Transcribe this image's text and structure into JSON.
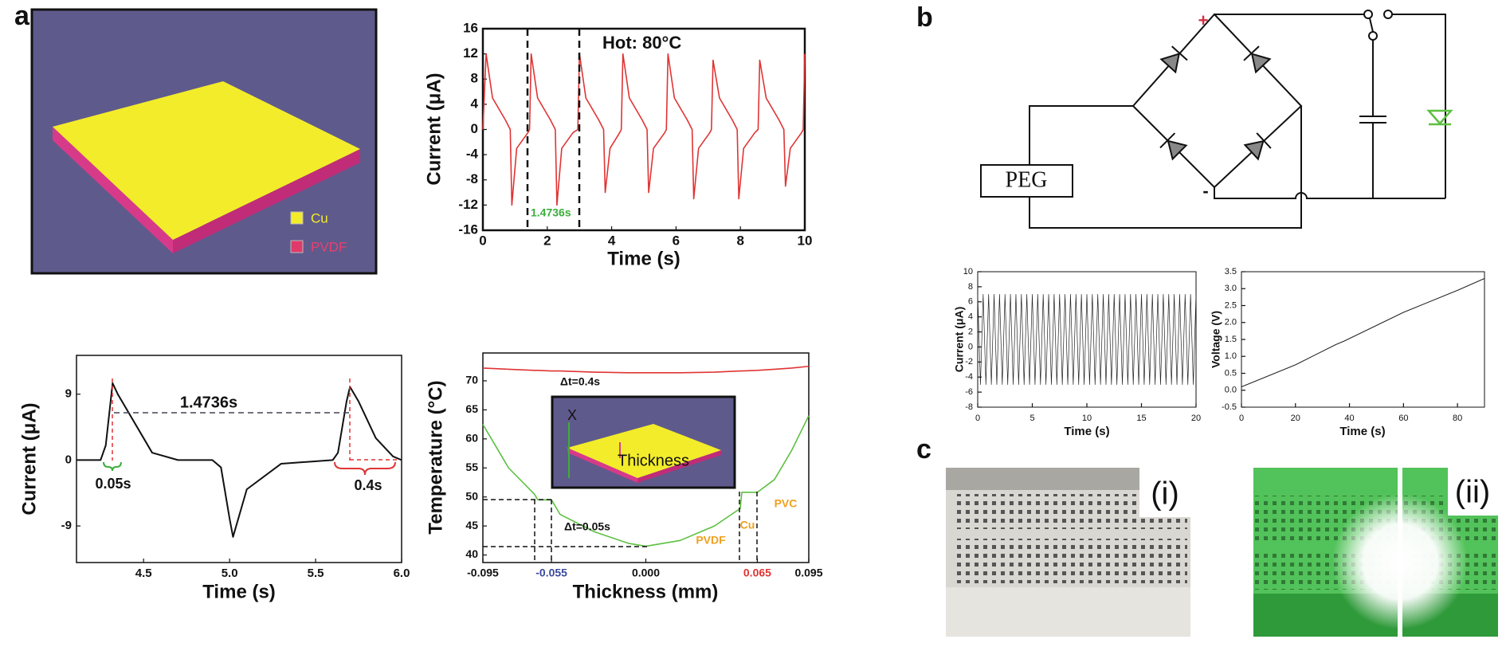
{
  "figure": {
    "panel_labels": [
      "a",
      "b",
      "c"
    ],
    "legend": [
      "Cu",
      "PVDF"
    ],
    "circuit": {
      "source": "PEG",
      "positive": "+",
      "negative": "-"
    },
    "photos": [
      "(i)",
      "(ii)"
    ]
  },
  "chart_data": [
    {
      "type": "line",
      "x_label": "Time (s)",
      "y_label": "Current (μA)",
      "annotations": [
        "Hot: 80°C",
        "1.4736s"
      ],
      "x": [
        0,
        0.1,
        0.3,
        0.7,
        0.85,
        0.9,
        1.05,
        1.4,
        1.45,
        1.5,
        1.7,
        2.1,
        2.25,
        2.3,
        2.45,
        2.8,
        2.95,
        3.0,
        3.2,
        3.6,
        3.75,
        3.8,
        3.95,
        4.25,
        4.3,
        4.35,
        4.55,
        4.95,
        5.1,
        5.15,
        5.3,
        5.65,
        5.7,
        5.75,
        5.95,
        6.35,
        6.5,
        6.55,
        6.7,
        7.05,
        7.1,
        7.15,
        7.35,
        7.75,
        7.9,
        7.95,
        8.1,
        8.45,
        8.55,
        8.6,
        8.8,
        9.2,
        9.35,
        9.4,
        9.55,
        9.9,
        9.95,
        10
      ],
      "series": [
        {
          "color": "#e03434",
          "values": [
            0,
            12,
            5,
            1.5,
            0,
            -12,
            -3,
            -0.5,
            0,
            12,
            5,
            1.5,
            0,
            -12,
            -3,
            -0.5,
            0,
            12,
            5,
            1.5,
            0,
            -10,
            -3,
            -0.5,
            0,
            12,
            5,
            1.5,
            0,
            -10,
            -3,
            -0.5,
            0,
            12,
            5,
            1.5,
            0,
            -11,
            -3,
            -0.5,
            0,
            11,
            5,
            1.5,
            0,
            -11,
            -3,
            -0.5,
            0,
            11,
            5,
            1.5,
            0,
            -9,
            -3,
            -0.5,
            0,
            12
          ]
        }
      ],
      "xlim": [
        0,
        10
      ],
      "ylim": [
        -16,
        16
      ],
      "xticks": [
        0,
        2,
        4,
        6,
        8,
        10
      ],
      "yticks": [
        -16,
        -12,
        -8,
        -4,
        0,
        4,
        8,
        12,
        16
      ]
    },
    {
      "type": "line",
      "x_label": "Time (s)",
      "y_label": "Current (μA)",
      "annotations": [
        "1.4736s",
        "0.05s",
        "0.4s"
      ],
      "x": [
        4.11,
        4.25,
        4.28,
        4.32,
        4.35,
        4.45,
        4.55,
        4.7,
        4.9,
        4.95,
        5.0,
        5.02,
        5.1,
        5.3,
        5.6,
        5.63,
        5.68,
        5.7,
        5.75,
        5.85,
        5.95,
        6.0
      ],
      "series": [
        {
          "color": "#111111",
          "values": [
            0,
            0,
            2,
            10.5,
            9,
            5,
            1,
            0,
            0,
            -1,
            -8,
            -10.5,
            -4,
            -0.5,
            0,
            1,
            8,
            10,
            8,
            3,
            0.5,
            0
          ]
        }
      ],
      "xlim": [
        4.11,
        6.0
      ],
      "ylim": [
        -14,
        14.3
      ],
      "xticks": [
        4.5,
        {
          "value": 5,
          "label": "5.0"
        },
        5.5,
        {
          "value": 6,
          "label": "6.0"
        }
      ],
      "yticks": [
        -9,
        0,
        9
      ]
    },
    {
      "type": "line",
      "x_label": "Thickness (mm)",
      "y_label": "Temperature (°C)",
      "annotations": [
        "Δt=0.4s",
        "Δt=0.05s",
        "PVDF",
        "Cu",
        "PVC",
        "X",
        "Thickness"
      ],
      "x": [
        -0.095,
        -0.08,
        -0.065,
        -0.063,
        -0.055,
        -0.05,
        -0.03,
        -0.01,
        0,
        0.02,
        0.04,
        0.055,
        0.056,
        0.065,
        0.075,
        0.085,
        0.095
      ],
      "series": [
        {
          "color": "#e03434",
          "values": [
            72.2,
            72,
            71.8,
            71.8,
            71.7,
            71.7,
            71.5,
            71.4,
            71.4,
            71.4,
            71.5,
            71.7,
            71.7,
            71.8,
            72,
            72.2,
            72.5
          ]
        },
        {
          "color": "#5cc040",
          "values": [
            62.5,
            55,
            50.5,
            49.5,
            49.5,
            47,
            44,
            42,
            41.5,
            42.5,
            45,
            48,
            50.8,
            50.8,
            53,
            58,
            64
          ]
        }
      ],
      "xlim": [
        -0.095,
        0.095
      ],
      "ylim": [
        38.7,
        74.8
      ],
      "xticks": [
        -0.095,
        -0.055,
        {
          "value": 0,
          "label": "0.000"
        },
        0.065,
        0.095
      ],
      "yticks": [
        40,
        45,
        50,
        55,
        60,
        65,
        70
      ]
    },
    {
      "type": "line",
      "x_label": "Time (s)",
      "y_label": "Current (μA)",
      "x": [
        0,
        0.25,
        0.5,
        0.75,
        1,
        1.25,
        1.5,
        1.75,
        2,
        2.25,
        2.5,
        2.75,
        3,
        3.25,
        3.5,
        3.75,
        4,
        4.25,
        4.5,
        4.75,
        5,
        5.25,
        5.5,
        5.75,
        6,
        6.25,
        6.5,
        6.75,
        7,
        7.25,
        7.5,
        7.75,
        8,
        8.25,
        8.5,
        8.75,
        9,
        9.25,
        9.5,
        9.75,
        10,
        10.25,
        10.5,
        10.75,
        11,
        11.25,
        11.5,
        11.75,
        12,
        12.25,
        12.5,
        12.75,
        13,
        13.25,
        13.5,
        13.75,
        14,
        14.25,
        14.5,
        14.75,
        15,
        15.25,
        15.5,
        15.75,
        16,
        16.25,
        16.5,
        16.75,
        17,
        17.25,
        17.5,
        17.75,
        18,
        18.25,
        18.5,
        18.75,
        19,
        19.25,
        19.5,
        19.75,
        20
      ],
      "series": [
        {
          "color": "#222222",
          "values": [
            7,
            -5,
            7,
            -5,
            7,
            -5,
            7,
            -5,
            7,
            -5,
            7,
            -5,
            7,
            -5,
            7,
            -5,
            7,
            -5,
            7,
            -5,
            7,
            -5,
            7,
            -5,
            7,
            -5,
            7,
            -5,
            7,
            -5,
            7,
            -5,
            7,
            -5,
            7,
            -5,
            7,
            -5,
            7,
            -5,
            7,
            -5,
            7,
            -5,
            7,
            -5,
            7,
            -5,
            7,
            -5,
            7,
            -5,
            7,
            -5,
            7,
            -5,
            7,
            -5,
            7,
            -5,
            7,
            -5,
            7,
            -5,
            7,
            -5,
            7,
            -5,
            7,
            -5,
            7,
            -5,
            7,
            -5,
            7,
            -5,
            7,
            -5,
            7,
            -5,
            7
          ]
        }
      ],
      "xlim": [
        0,
        20
      ],
      "ylim": [
        -8,
        10
      ],
      "xticks": [
        0,
        5,
        10,
        15,
        20
      ],
      "yticks": [
        -8,
        -6,
        -4,
        -2,
        0,
        2,
        4,
        6,
        8,
        10
      ]
    },
    {
      "type": "line",
      "x_label": "Time (s)",
      "y_label": "Voltage (V)",
      "x": [
        0,
        20,
        35,
        38,
        60,
        80,
        90
      ],
      "series": [
        {
          "color": "#222222",
          "values": [
            0.1,
            0.75,
            1.35,
            1.45,
            2.3,
            2.95,
            3.3
          ]
        }
      ],
      "xlim": [
        0,
        90
      ],
      "ylim": [
        -0.5,
        3.5
      ],
      "xticks": [
        0,
        20,
        40,
        60,
        80
      ],
      "yticks": [
        -0.5,
        {
          "value": 0,
          "label": "0.0"
        },
        0.5,
        {
          "value": 1,
          "label": "1.0"
        },
        1.5,
        {
          "value": 2,
          "label": "2.0"
        },
        2.5,
        {
          "value": 3,
          "label": "3.0"
        },
        3.5
      ]
    }
  ]
}
